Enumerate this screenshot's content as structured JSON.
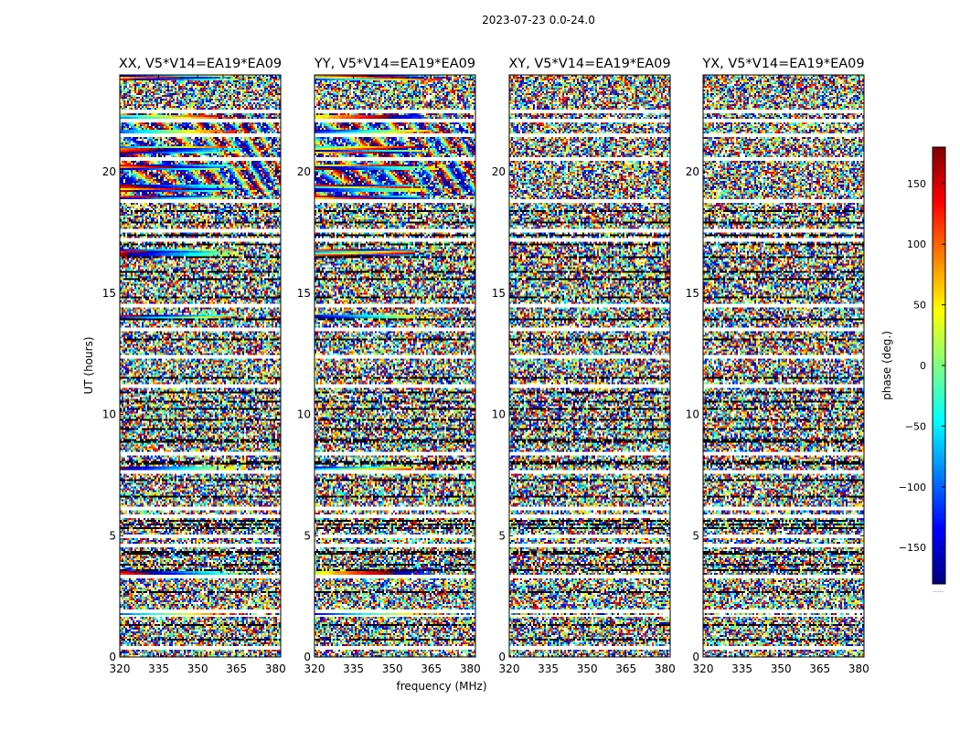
{
  "chart_data": {
    "type": "heatmap",
    "suptitle": "2023-07-23 0.0-24.0",
    "xlabel": "frequency (MHz)",
    "ylabel": "UT (hours)",
    "xlim": [
      320,
      382
    ],
    "ylim": [
      0,
      24
    ],
    "xticks": [
      320,
      335,
      350,
      365,
      380
    ],
    "yticks": [
      0,
      5,
      10,
      15,
      20
    ],
    "colorbar": {
      "label": "phase (deg.)",
      "range": [
        -180,
        180
      ],
      "ticks": [
        150,
        100,
        50,
        0,
        -50,
        -100,
        -150
      ],
      "tick_labels": [
        "150",
        "100",
        "50",
        "0",
        "−50",
        "−100",
        "−150"
      ],
      "colormap": "jet",
      "under_label": "....."
    },
    "panels": [
      {
        "title": "XX, V5*V14=EA19*EA09",
        "polarization": "XX"
      },
      {
        "title": "YY, V5*V14=EA19*EA09",
        "polarization": "YY"
      },
      {
        "title": "XY, V5*V14=EA19*EA09",
        "polarization": "XY"
      },
      {
        "title": "YX, V5*V14=EA19*EA09",
        "polarization": "YX"
      }
    ],
    "flagged_white_hours": [
      0.4,
      1.7,
      1.9,
      3.3,
      4.6,
      5.0,
      5.8,
      6.1,
      7.6,
      8.4,
      11.2,
      12.4,
      13.5,
      14.5,
      17.2,
      17.6,
      18.8,
      20.5,
      21.5,
      22.1,
      22.5
    ],
    "flagged_black_hours": [
      0.7,
      1.3,
      2.7,
      3.6,
      3.8,
      4.3,
      5.3,
      5.45,
      5.6,
      6.6,
      7.3,
      8.0,
      8.9,
      9.4,
      9.8,
      10.2,
      10.5,
      10.9,
      11.5,
      13.1,
      13.9,
      14.8,
      15.6,
      15.9,
      16.5,
      17.0,
      17.4,
      17.9,
      18.4
    ],
    "coherent_bands_hours": [
      1.8,
      3.5,
      7.7,
      14.0,
      16.7,
      18.9,
      19.3,
      20.2,
      20.9,
      21.6,
      22.2,
      23.9
    ],
    "noise_density": 0.55
  }
}
